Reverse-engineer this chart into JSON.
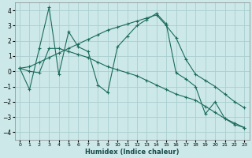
{
  "xlabel": "Humidex (Indice chaleur)",
  "xlim": [
    -0.5,
    23.5
  ],
  "ylim": [
    -4.5,
    4.5
  ],
  "yticks": [
    -4,
    -3,
    -2,
    -1,
    0,
    1,
    2,
    3,
    4
  ],
  "xticks": [
    0,
    1,
    2,
    3,
    4,
    5,
    6,
    7,
    8,
    9,
    10,
    11,
    12,
    13,
    14,
    15,
    16,
    17,
    18,
    19,
    20,
    21,
    22,
    23
  ],
  "bg_color": "#cce8e8",
  "grid_color": "#aacece",
  "line_color": "#1a6b5a",
  "curve1_x": [
    0,
    1,
    2,
    3,
    4,
    5,
    6,
    7,
    8,
    9,
    10,
    11,
    12,
    13,
    14,
    15,
    16,
    17,
    18,
    19,
    20,
    21,
    22,
    23
  ],
  "curve1_y": [
    0.2,
    -1.2,
    1.5,
    4.2,
    -0.2,
    2.6,
    1.6,
    1.3,
    -0.9,
    -1.4,
    1.6,
    2.3,
    3.0,
    3.4,
    3.8,
    3.1,
    -0.1,
    -0.5,
    -1.0,
    -2.8,
    -2.0,
    -3.1,
    -3.5,
    -3.7
  ],
  "curve2_x": [
    0,
    1,
    2,
    3,
    4,
    5,
    6,
    7,
    8,
    9,
    10,
    11,
    12,
    13,
    14,
    15,
    16,
    17,
    18,
    19,
    20,
    21,
    22,
    23
  ],
  "curve2_y": [
    0.2,
    0.3,
    0.6,
    0.9,
    1.2,
    1.5,
    1.8,
    2.1,
    2.4,
    2.7,
    2.9,
    3.1,
    3.3,
    3.5,
    3.7,
    3.0,
    2.2,
    0.8,
    -0.2,
    -0.6,
    -1.0,
    -1.5,
    -2.0,
    -2.4
  ],
  "curve3_x": [
    0,
    1,
    2,
    3,
    4,
    5,
    6,
    7,
    8,
    9,
    10,
    11,
    12,
    13,
    14,
    15,
    16,
    17,
    18,
    19,
    20,
    21,
    22,
    23
  ],
  "curve3_y": [
    0.2,
    0.0,
    -0.1,
    1.5,
    1.5,
    1.3,
    1.1,
    0.9,
    0.6,
    0.3,
    0.1,
    -0.1,
    -0.3,
    -0.6,
    -0.9,
    -1.2,
    -1.5,
    -1.7,
    -1.9,
    -2.3,
    -2.7,
    -3.1,
    -3.4,
    -3.7
  ]
}
